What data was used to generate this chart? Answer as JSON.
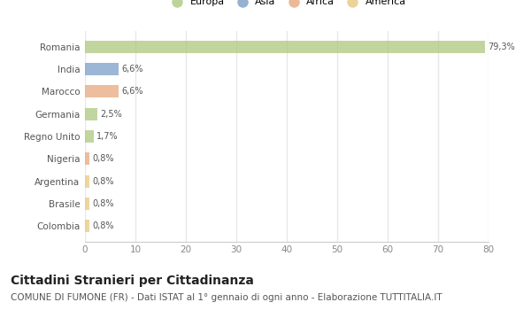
{
  "countries": [
    "Romania",
    "India",
    "Marocco",
    "Germania",
    "Regno Unito",
    "Nigeria",
    "Argentina",
    "Brasile",
    "Colombia"
  ],
  "values": [
    79.3,
    6.6,
    6.6,
    2.5,
    1.7,
    0.8,
    0.8,
    0.8,
    0.8
  ],
  "labels": [
    "79,3%",
    "6,6%",
    "6,6%",
    "2,5%",
    "1,7%",
    "0,8%",
    "0,8%",
    "0,8%",
    "0,8%"
  ],
  "colors": [
    "#adc97e",
    "#7b9fc7",
    "#e8a87c",
    "#adc97e",
    "#adc97e",
    "#e8a87c",
    "#e8c97e",
    "#e8c97e",
    "#e8c97e"
  ],
  "legend_labels": [
    "Europa",
    "Asia",
    "Africa",
    "America"
  ],
  "legend_colors": [
    "#adc97e",
    "#7b9fc7",
    "#e8a87c",
    "#e8c97e"
  ],
  "title": "Cittadini Stranieri per Cittadinanza",
  "subtitle": "COMUNE DI FUMONE (FR) - Dati ISTAT al 1° gennaio di ogni anno - Elaborazione TUTTITALIA.IT",
  "xlim": [
    0,
    80
  ],
  "xticks": [
    0,
    10,
    20,
    30,
    40,
    50,
    60,
    70,
    80
  ],
  "bg_color": "#ffffff",
  "grid_color": "#e8e8e8",
  "title_fontsize": 10,
  "subtitle_fontsize": 7.5,
  "bar_height": 0.55
}
